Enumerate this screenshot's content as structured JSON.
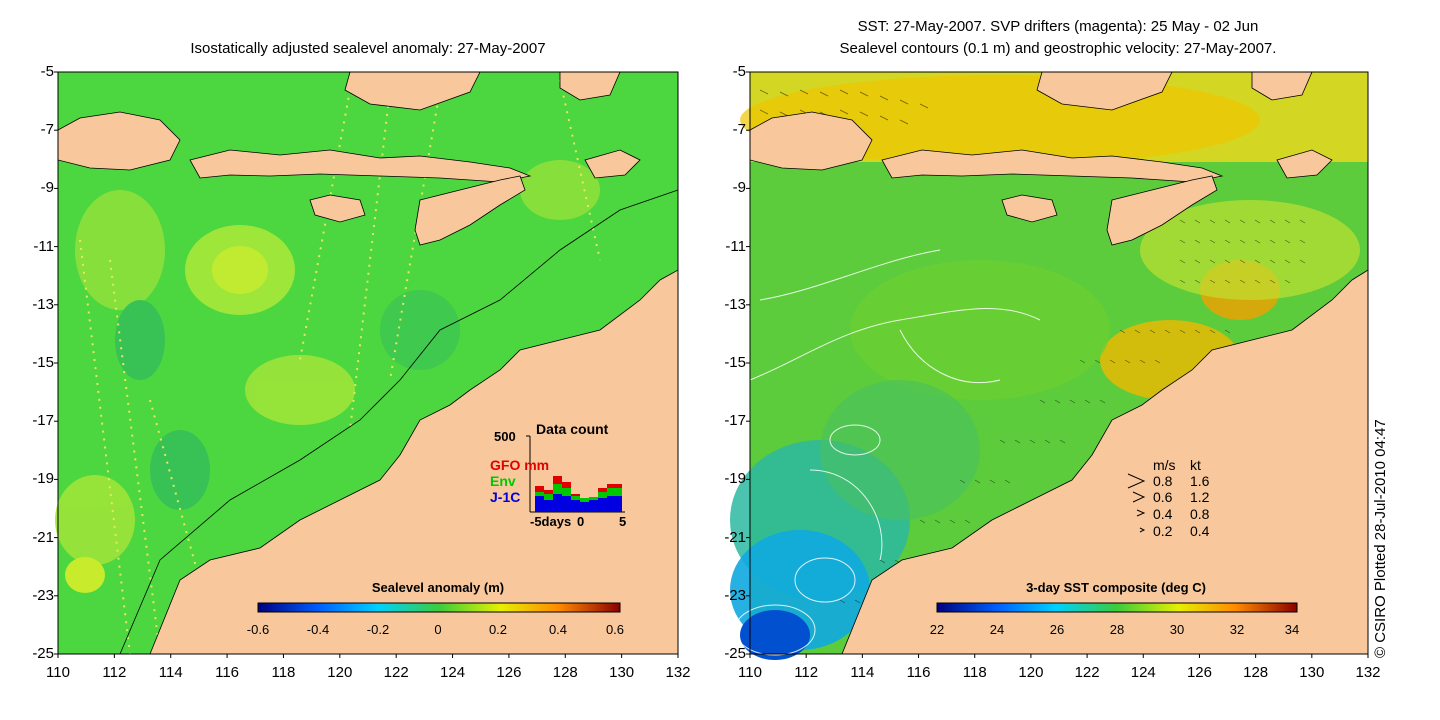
{
  "left_panel": {
    "title": "Isostatically adjusted sealevel anomaly: 27-May-2007",
    "colorbar": {
      "title": "Sealevel anomaly (m)",
      "ticks": [
        "-0.6",
        "-0.4",
        "-0.2",
        "0",
        "0.2",
        "0.4",
        "0.6"
      ]
    },
    "inset": {
      "title": "Data count",
      "y_max_label": "500",
      "legend": [
        {
          "label": "GFO mm",
          "color": "#e00000"
        },
        {
          "label": "Env",
          "color": "#00c800"
        },
        {
          "label": "J-1C",
          "color": "#0000e0"
        }
      ],
      "x_labels": [
        "-5days",
        "0",
        "5"
      ]
    }
  },
  "right_panel": {
    "title_line1": "SST: 27-May-2007. SVP drifters (magenta): 25 May - 02 Jun",
    "title_line2": "Sealevel contours (0.1 m) and geostrophic velocity: 27-May-2007.",
    "colorbar": {
      "title": "3-day SST composite (deg C)",
      "ticks": [
        "22",
        "24",
        "26",
        "28",
        "30",
        "32",
        "34"
      ]
    },
    "velocity_key": {
      "header_ms": "m/s",
      "header_kt": "kt",
      "rows": [
        {
          "ms": "0.8",
          "kt": "1.6"
        },
        {
          "ms": "0.6",
          "kt": "1.2"
        },
        {
          "ms": "0.4",
          "kt": "0.8"
        },
        {
          "ms": "0.2",
          "kt": "0.4"
        }
      ]
    }
  },
  "axes": {
    "y_ticks": [
      "-5",
      "-7",
      "-9",
      "-11",
      "-13",
      "-15",
      "-17",
      "-19",
      "-21",
      "-23",
      "-25"
    ],
    "x_ticks": [
      "110",
      "112",
      "114",
      "116",
      "118",
      "120",
      "122",
      "124",
      "126",
      "128",
      "130",
      "132"
    ]
  },
  "credit": "© CSIRO Plotted 28-Jul-2010 04:47",
  "colors": {
    "land": "#f8c89c",
    "ocean_sla": "#4cd640",
    "ocean_sst": "#5ccc3c"
  }
}
